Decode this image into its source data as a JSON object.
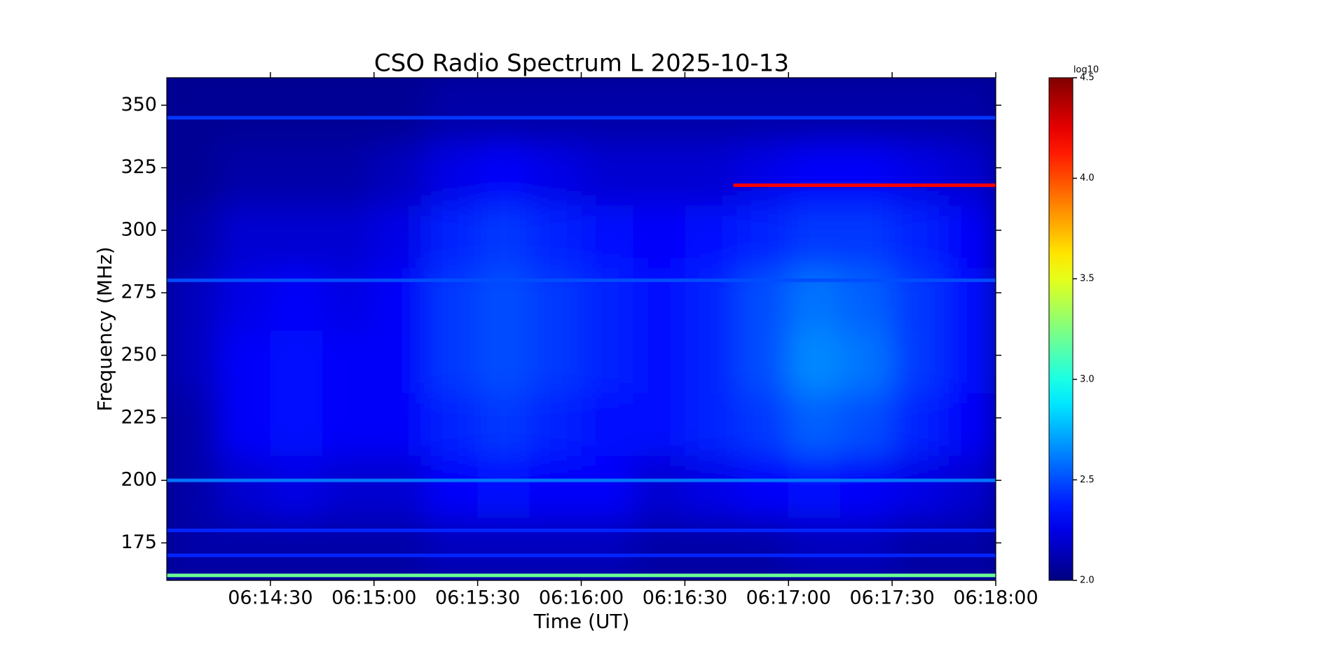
{
  "chart_data": {
    "type": "heatmap",
    "title": "CSO Radio Spectrum L 2025-10-13",
    "xlabel": "Time (UT)",
    "ylabel": "Frequency (MHz)",
    "xlim": [
      22440,
      22680
    ],
    "xticks": [
      {
        "value": 22470,
        "label": "06:14:30"
      },
      {
        "value": 22500,
        "label": "06:15:00"
      },
      {
        "value": 22530,
        "label": "06:15:30"
      },
      {
        "value": 22560,
        "label": "06:16:00"
      },
      {
        "value": 22590,
        "label": "06:16:30"
      },
      {
        "value": 22620,
        "label": "06:17:00"
      },
      {
        "value": 22650,
        "label": "06:17:30"
      },
      {
        "value": 22680,
        "label": "06:18:00"
      }
    ],
    "ylim": [
      160,
      361
    ],
    "yticks": [
      175,
      200,
      225,
      250,
      275,
      300,
      325,
      350
    ],
    "xbins": [
      22440,
      22455,
      22470,
      22485,
      22500,
      22515,
      22530,
      22545,
      22560,
      22575,
      22590,
      22605,
      22620,
      22635,
      22650,
      22665,
      22680
    ],
    "ybins": [
      160,
      185,
      210,
      235,
      260,
      285,
      310,
      335,
      361
    ],
    "z": [
      [
        2.1,
        2.1,
        2.1,
        2.1,
        2.1,
        2.15,
        2.15,
        2.15,
        2.15,
        2.1,
        2.1,
        2.1,
        2.15,
        2.15,
        2.1,
        2.1
      ],
      [
        2.1,
        2.2,
        2.25,
        2.2,
        2.2,
        2.3,
        2.35,
        2.3,
        2.3,
        2.2,
        2.25,
        2.3,
        2.35,
        2.3,
        2.25,
        2.2
      ],
      [
        2.1,
        2.3,
        2.35,
        2.3,
        2.3,
        2.4,
        2.45,
        2.4,
        2.35,
        2.35,
        2.4,
        2.45,
        2.55,
        2.5,
        2.4,
        2.3
      ],
      [
        2.15,
        2.3,
        2.35,
        2.3,
        2.3,
        2.45,
        2.5,
        2.45,
        2.4,
        2.35,
        2.4,
        2.5,
        2.65,
        2.6,
        2.45,
        2.35
      ],
      [
        2.15,
        2.25,
        2.3,
        2.25,
        2.3,
        2.45,
        2.5,
        2.45,
        2.4,
        2.35,
        2.4,
        2.5,
        2.6,
        2.55,
        2.45,
        2.35
      ],
      [
        2.1,
        2.2,
        2.2,
        2.2,
        2.25,
        2.4,
        2.45,
        2.4,
        2.35,
        2.3,
        2.35,
        2.4,
        2.45,
        2.45,
        2.4,
        2.3
      ],
      [
        2.05,
        2.1,
        2.1,
        2.1,
        2.15,
        2.25,
        2.3,
        2.25,
        2.2,
        2.2,
        2.2,
        2.25,
        2.3,
        2.3,
        2.25,
        2.2
      ],
      [
        2.05,
        2.05,
        2.05,
        2.05,
        2.05,
        2.1,
        2.1,
        2.1,
        2.1,
        2.1,
        2.1,
        2.1,
        2.1,
        2.1,
        2.1,
        2.1
      ]
    ],
    "bands": [
      {
        "freq": 318,
        "start": 22604,
        "end": 22680,
        "value": 4.2
      },
      {
        "freq": 162,
        "start": 22440,
        "end": 22680,
        "value": 3.2
      },
      {
        "freq": 200,
        "start": 22440,
        "end": 22680,
        "value": 2.6
      },
      {
        "freq": 280,
        "start": 22440,
        "end": 22680,
        "value": 2.5
      },
      {
        "freq": 345,
        "start": 22440,
        "end": 22680,
        "value": 2.45
      },
      {
        "freq": 180,
        "start": 22440,
        "end": 22680,
        "value": 2.4
      },
      {
        "freq": 170,
        "start": 22440,
        "end": 22680,
        "value": 2.4
      }
    ],
    "colorbar": {
      "label": "log10",
      "colormap": "jet",
      "lim": [
        2,
        4.5
      ],
      "ticks": [
        {
          "value": 2,
          "label": "2.0"
        },
        {
          "value": 2.5,
          "label": "2.5"
        },
        {
          "value": 3,
          "label": "3.0"
        },
        {
          "value": 3.5,
          "label": "3.5"
        },
        {
          "value": 4,
          "label": "4.0"
        },
        {
          "value": 4.5,
          "label": "4.5"
        }
      ]
    }
  }
}
